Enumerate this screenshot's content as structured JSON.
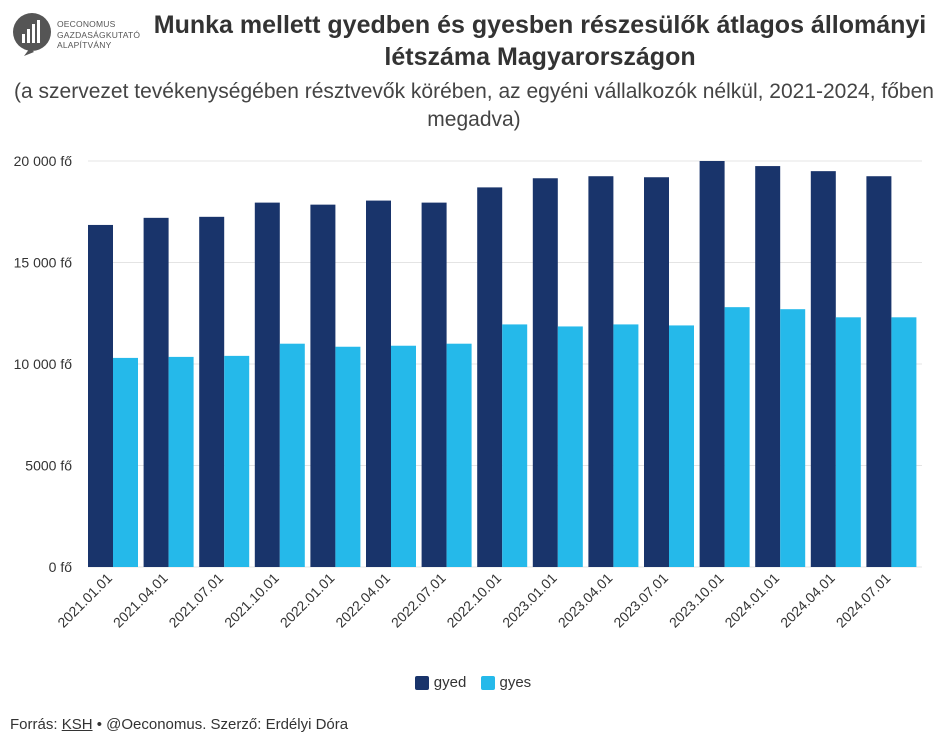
{
  "header": {
    "logo_text": "OECONOMUS\nGAZDASÁGKUTATÓ\nALAPÍTVÁNY",
    "title": "Munka mellett gyedben és gyesben részesülők átlagos állományi létszáma Magyarországon",
    "subtitle": "(a szervezet tevékenységében résztvevők körében, az egyéni vállalkozók nélkül, 2021-2024, főben megadva)"
  },
  "colors": {
    "gyed": "#19346b",
    "gyes": "#25b9ea",
    "grid": "#e4e4e4",
    "axis_text": "#333333"
  },
  "chart_data": {
    "type": "bar",
    "title": "Munka mellett gyedben és gyesben részesülők átlagos állományi létszáma Magyarországon",
    "subtitle": "(a szervezet tevékenységében résztvevők körében, az egyéni vállalkozók nélkül, 2021-2024, főben megadva)",
    "categories": [
      "2021.01.01",
      "2021.04.01",
      "2021.07.01",
      "2021.10.01",
      "2022.01.01",
      "2022.04.01",
      "2022.07.01",
      "2022.10.01",
      "2023.01.01",
      "2023.04.01",
      "2023.07.01",
      "2023.10.01",
      "2024.01.01",
      "2024.04.01",
      "2024.07.01"
    ],
    "series": [
      {
        "name": "gyed",
        "values": [
          16850,
          17200,
          17250,
          17950,
          17850,
          18050,
          17950,
          18700,
          19150,
          19250,
          19200,
          20000,
          19750,
          19500,
          19250
        ]
      },
      {
        "name": "gyes",
        "values": [
          10300,
          10350,
          10400,
          11000,
          10850,
          10900,
          11000,
          11950,
          11850,
          11950,
          11900,
          12800,
          12700,
          12300,
          12300
        ]
      }
    ],
    "ylim": [
      0,
      20000
    ],
    "yticks": [
      0,
      5000,
      10000,
      15000,
      20000
    ],
    "ytick_labels": [
      "0 fő",
      "5000 fő",
      "10 000 fő",
      "15 000 fő",
      "20 000 fő"
    ],
    "xlabel": "",
    "ylabel": "",
    "grid": true,
    "legend_position": "bottom"
  },
  "legend": {
    "items": [
      "gyed",
      "gyes"
    ]
  },
  "footer": {
    "prefix": "Forrás: ",
    "source": "KSH",
    "rest": " • @Oeconomus. Szerző: Erdélyi Dóra"
  }
}
